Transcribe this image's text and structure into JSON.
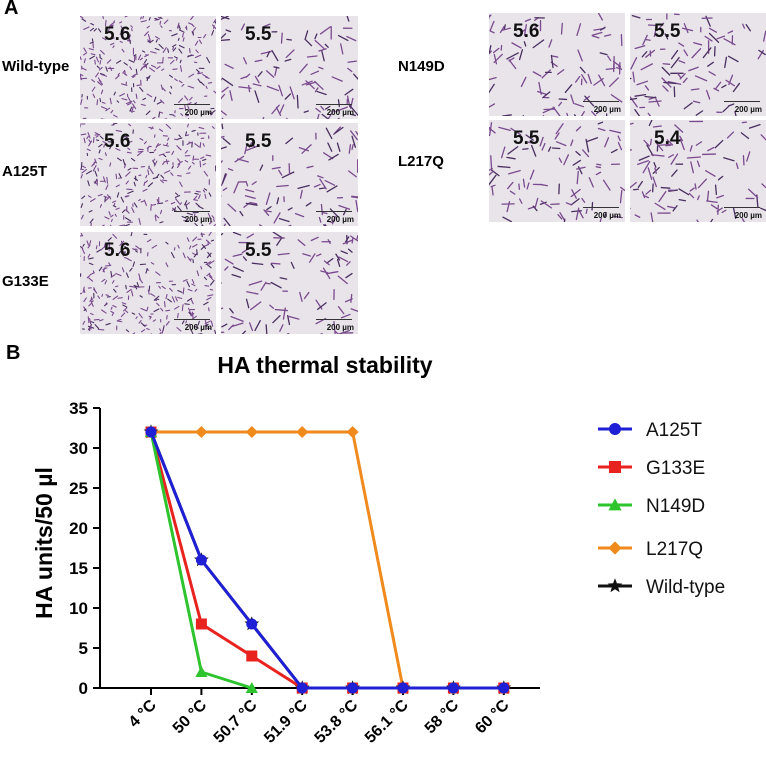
{
  "panel_a": {
    "label": "A",
    "rows": [
      {
        "strain": "Wild-type",
        "values": [
          "5.6",
          "5.5"
        ]
      },
      {
        "strain": "A125T",
        "values": [
          "5.6",
          "5.5"
        ]
      },
      {
        "strain": "G133E",
        "values": [
          "5.6",
          "5.5"
        ]
      },
      {
        "strain": "N149D",
        "values": [
          "5.6",
          "5.5"
        ]
      },
      {
        "strain": "L217Q",
        "values": [
          "5.5",
          "5.4"
        ]
      }
    ],
    "scale_bar": "200 µm"
  },
  "panel_b": {
    "label": "B"
  },
  "chart_data": {
    "type": "line",
    "title": "HA thermal stability",
    "ylabel": "HA units/50 µl",
    "xlabel": "",
    "categories": [
      "4 °C",
      "50 °C",
      "50.7 °C",
      "51.9 °C",
      "53.8 °C",
      "56.1 °C",
      "58 °C",
      "60 °C"
    ],
    "ylim": [
      0,
      35
    ],
    "yticks": [
      0,
      5,
      10,
      15,
      20,
      25,
      30,
      35
    ],
    "legend_position": "right",
    "series": [
      {
        "name": "A125T",
        "color": "#1f1fd6",
        "marker": "circle",
        "values": [
          32,
          16,
          8,
          0,
          0,
          0,
          0,
          0
        ]
      },
      {
        "name": "G133E",
        "color": "#e8231f",
        "marker": "square",
        "values": [
          32,
          8,
          4,
          0,
          0,
          0,
          0,
          0
        ]
      },
      {
        "name": "N149D",
        "color": "#2ec42e",
        "marker": "triangle",
        "values": [
          32,
          2,
          0,
          null,
          null,
          null,
          null,
          null
        ]
      },
      {
        "name": "L217Q",
        "color": "#f08a1c",
        "marker": "diamond",
        "values": [
          32,
          32,
          32,
          32,
          32,
          0,
          0,
          0
        ]
      },
      {
        "name": "Wild-type",
        "color": "#111111",
        "marker": "star",
        "values": [
          32,
          16,
          8,
          0,
          0,
          0,
          0,
          0
        ]
      }
    ]
  }
}
